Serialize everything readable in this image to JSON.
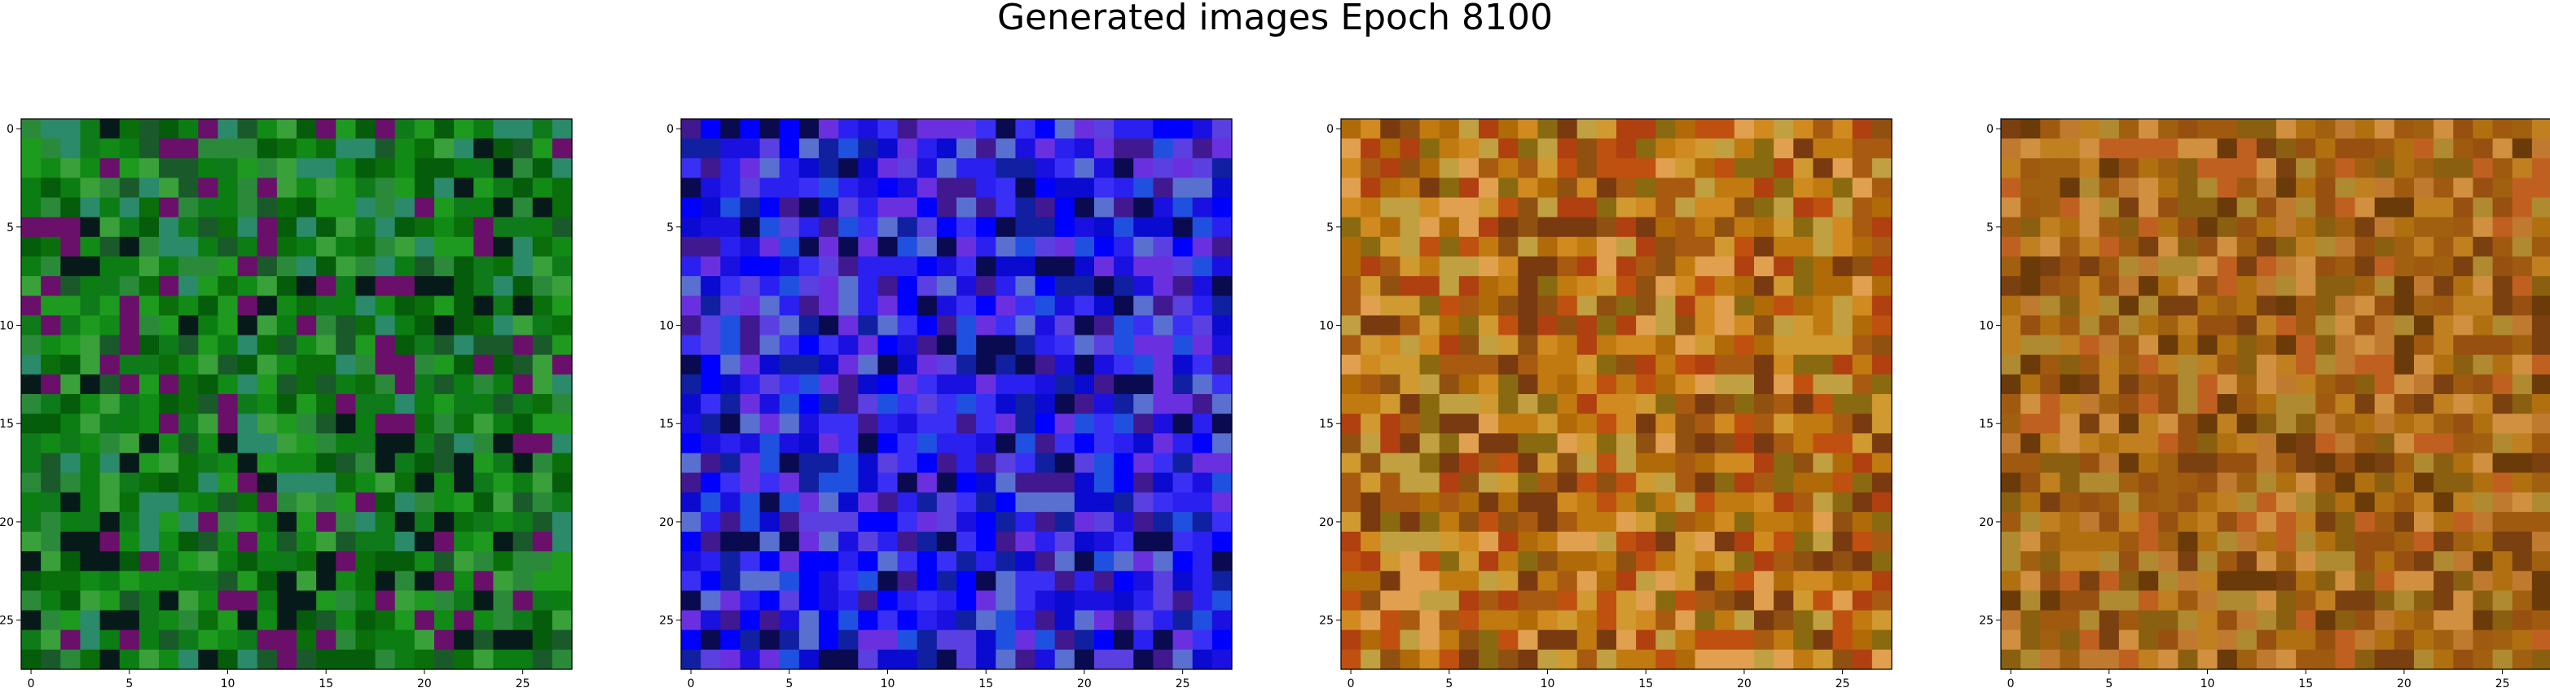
{
  "title": "Generated images Epoch 8100",
  "chart_data": [
    {
      "type": "heatmap",
      "title": "",
      "xlabel": "",
      "ylabel": "",
      "grid_size": [
        28,
        28
      ],
      "xlim": [
        -0.5,
        27.5
      ],
      "ylim": [
        27.5,
        -0.5
      ],
      "xticks": [
        0,
        5,
        10,
        15,
        20,
        25
      ],
      "yticks": [
        0,
        5,
        10,
        15,
        20,
        25
      ],
      "dominant_color": "green",
      "palette": [
        "#0a6e0a",
        "#0b7d12",
        "#128a16",
        "#1e9a1e",
        "#2b8a3a",
        "#055c0a",
        "#0f7a1a",
        "#3aa03a",
        "#1a5a2a",
        "#071a1a",
        "#6a106a",
        "#2a8a6a"
      ]
    },
    {
      "type": "heatmap",
      "title": "",
      "xlabel": "",
      "ylabel": "",
      "grid_size": [
        28,
        28
      ],
      "xlim": [
        -0.5,
        27.5
      ],
      "ylim": [
        27.5,
        -0.5
      ],
      "xticks": [
        0,
        5,
        10,
        15,
        20,
        25
      ],
      "yticks": [
        0,
        5,
        10,
        15,
        20,
        25
      ],
      "dominant_color": "blue",
      "palette": [
        "#1a10e0",
        "#2a20f0",
        "#0a0ad0",
        "#3a30f5",
        "#5a40e0",
        "#1020a0",
        "#6a30e0",
        "#0000ff",
        "#2050e0",
        "#401890",
        "#0a0a50",
        "#5a70d0"
      ]
    },
    {
      "type": "heatmap",
      "title": "",
      "xlabel": "",
      "ylabel": "",
      "grid_size": [
        28,
        28
      ],
      "xlim": [
        -0.5,
        27.5
      ],
      "ylim": [
        27.5,
        -0.5
      ],
      "xticks": [
        0,
        5,
        10,
        15,
        20,
        25
      ],
      "yticks": [
        0,
        5,
        10,
        15,
        20,
        25
      ],
      "dominant_color": "orange",
      "palette": [
        "#c07a10",
        "#b06a08",
        "#d08a20",
        "#a85a10",
        "#c05010",
        "#d09a30",
        "#8a6a10",
        "#b04010",
        "#e0a050",
        "#905010",
        "#7a3a10",
        "#c0a040"
      ]
    },
    {
      "type": "heatmap",
      "title": "",
      "xlabel": "",
      "ylabel": "",
      "grid_size": [
        28,
        28
      ],
      "xlim": [
        -0.5,
        27.5
      ],
      "ylim": [
        27.5,
        -0.5
      ],
      "xticks": [
        0,
        5,
        10,
        15,
        20,
        25
      ],
      "yticks": [
        0,
        5,
        10,
        15,
        20,
        25
      ],
      "dominant_color": "brown",
      "palette": [
        "#b07010",
        "#a06010",
        "#c08020",
        "#985010",
        "#8a6010",
        "#c06020",
        "#7a4010",
        "#b08a30",
        "#d09040",
        "#6a3a08",
        "#a05a10",
        "#c07a30"
      ]
    }
  ]
}
